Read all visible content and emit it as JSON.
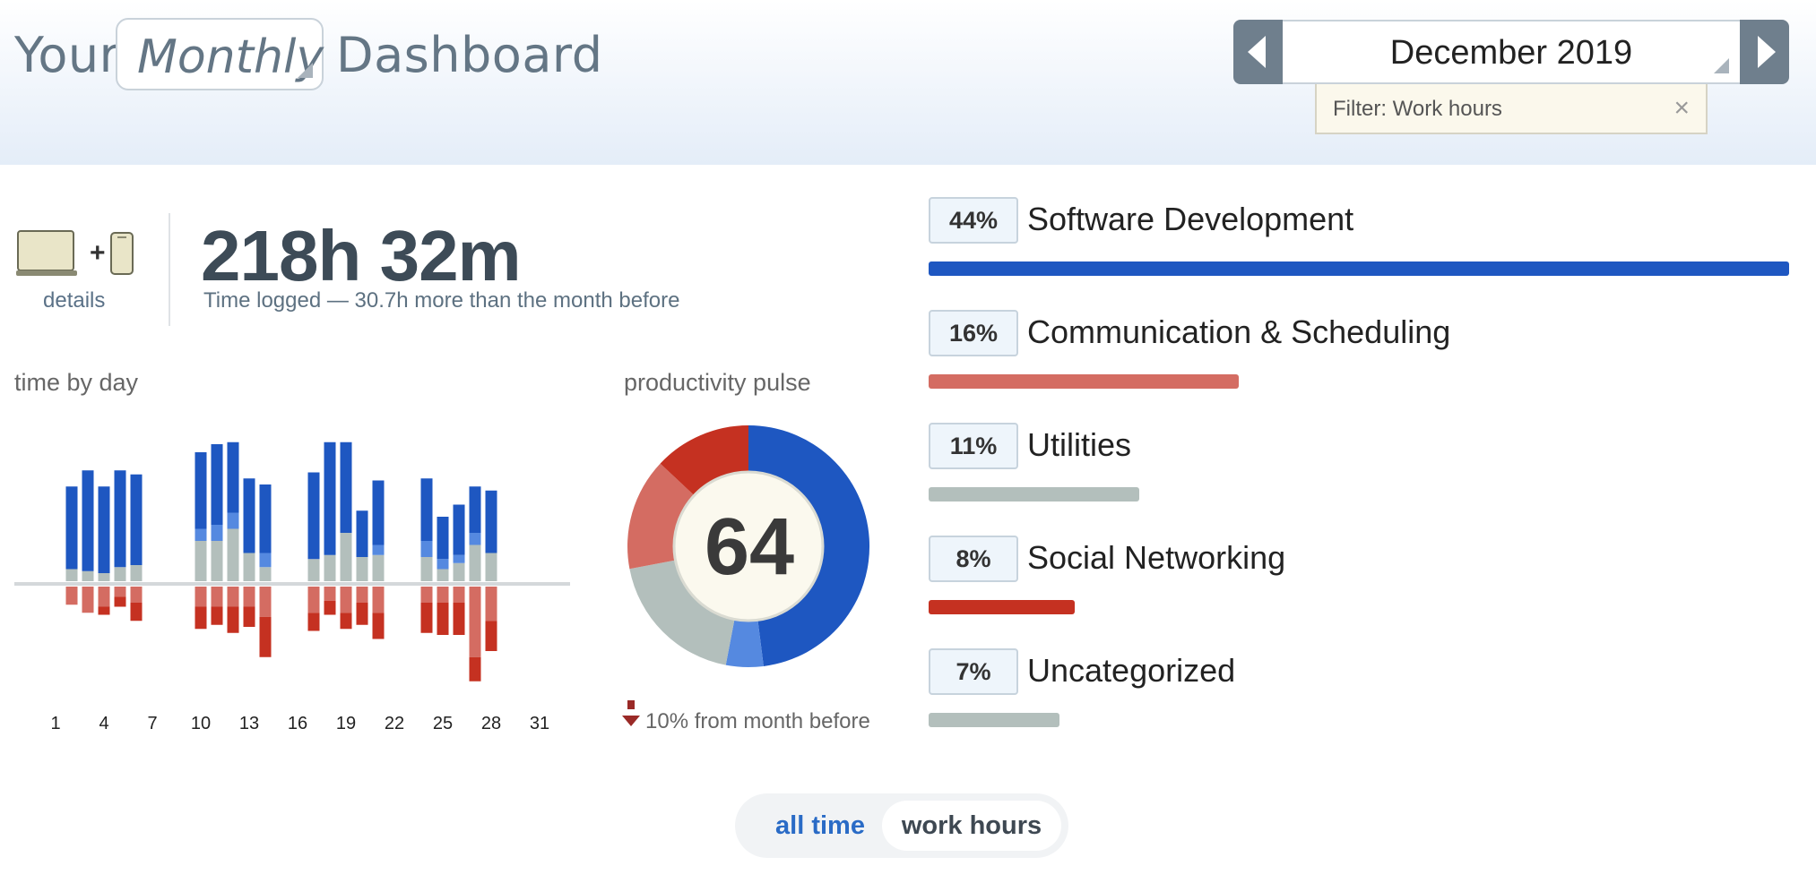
{
  "header": {
    "title_prefix": "Your",
    "title_suffix": "Dashboard",
    "period": "Monthly",
    "date": "December 2019",
    "filter": "Filter: Work hours",
    "filter_close": "×"
  },
  "summary": {
    "details_label": "details",
    "total_time": "218h 32m",
    "subtitle": "Time logged — 30.7h more than the month before"
  },
  "time_by_day": {
    "label": "time by day",
    "x_ticks": [
      "1",
      "4",
      "7",
      "10",
      "13",
      "16",
      "19",
      "22",
      "25",
      "28",
      "31"
    ]
  },
  "pulse": {
    "label": "productivity pulse",
    "score": "64",
    "change": "10% from month before"
  },
  "categories": [
    {
      "pct": "44%",
      "name": "Software Development",
      "fraction": 1.0,
      "color": "#1e57c1"
    },
    {
      "pct": "16%",
      "name": "Communication & Scheduling",
      "fraction": 0.36,
      "color": "#d46c62"
    },
    {
      "pct": "11%",
      "name": "Utilities",
      "fraction": 0.245,
      "color": "#b3bfbc"
    },
    {
      "pct": "8%",
      "name": "Social Networking",
      "fraction": 0.17,
      "color": "#c53121"
    },
    {
      "pct": "7%",
      "name": "Uncategorized",
      "fraction": 0.152,
      "color": "#b3bfbc"
    }
  ],
  "toggle": {
    "all_time": "all time",
    "work_hours": "work hours"
  },
  "colors": {
    "very_productive": "#1e57c1",
    "productive": "#5589e0",
    "neutral": "#b3bfbc",
    "distracting": "#d46c62",
    "very_distracting": "#c53121"
  },
  "chart_data": [
    {
      "type": "bar",
      "title": "time by day",
      "x": [
        2,
        3,
        4,
        5,
        6,
        10,
        11,
        12,
        13,
        14,
        17,
        18,
        19,
        20,
        21,
        24,
        25,
        26,
        27,
        28
      ],
      "x_ticks": [
        1,
        4,
        7,
        10,
        13,
        16,
        19,
        22,
        25,
        28,
        31
      ],
      "stacked": true,
      "diverging": true,
      "series": [
        {
          "key": "very_productive",
          "values": [
            4.1,
            5.0,
            4.3,
            4.8,
            4.5,
            3.8,
            4.0,
            3.5,
            3.7,
            3.4,
            4.3,
            5.6,
            4.5,
            2.3,
            3.2,
            3.1,
            2.1,
            2.5,
            2.3,
            3.1
          ]
        },
        {
          "key": "productive",
          "values": [
            0,
            0,
            0,
            0,
            0,
            0.6,
            0.8,
            0.8,
            0,
            0.7,
            0,
            0,
            0,
            0,
            0.5,
            0.8,
            0.5,
            0.4,
            0.6,
            0
          ]
        },
        {
          "key": "neutral",
          "values": [
            0.6,
            0.5,
            0.4,
            0.7,
            0.8,
            2.0,
            2.0,
            2.6,
            1.4,
            0.7,
            1.1,
            1.3,
            2.4,
            1.2,
            1.3,
            1.2,
            0.6,
            0.9,
            1.8,
            1.4
          ]
        },
        {
          "key": "distracting",
          "values": [
            -0.9,
            -1.3,
            -1.0,
            -0.5,
            -0.8,
            -1.0,
            -1.0,
            -1.0,
            -1.0,
            -1.5,
            -1.3,
            -0.7,
            -1.3,
            -0.8,
            -1.3,
            -0.8,
            -0.8,
            -0.8,
            -3.5,
            -1.7
          ]
        },
        {
          "key": "very_distracting",
          "values": [
            0,
            0,
            -0.4,
            -0.5,
            -0.9,
            -1.1,
            -0.9,
            -1.3,
            -1.0,
            -2.0,
            -0.9,
            -0.7,
            -0.8,
            -1.1,
            -1.3,
            -1.5,
            -1.6,
            -1.6,
            -1.2,
            -1.5
          ]
        }
      ]
    },
    {
      "type": "pie",
      "title": "productivity pulse",
      "center_value": 64,
      "donut": true,
      "values": [
        48,
        5,
        19,
        15,
        13
      ],
      "keys": [
        "very_productive",
        "productive",
        "neutral",
        "distracting",
        "very_distracting"
      ]
    }
  ]
}
